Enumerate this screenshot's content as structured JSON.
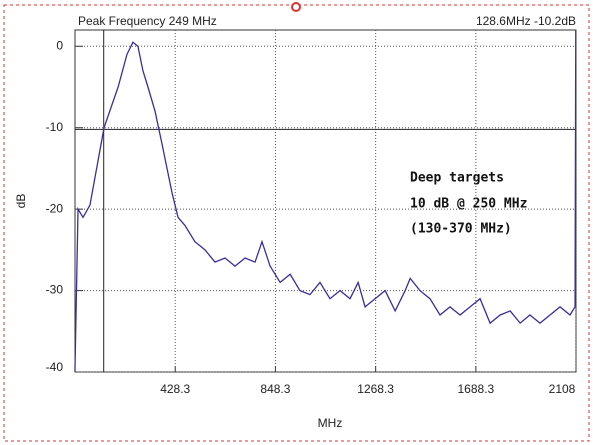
{
  "chart_data": {
    "type": "line",
    "title": "Peak Frequency 249 MHz",
    "cursor": {
      "x": 128.6,
      "y": -10.2,
      "label": "128.6MHz -10.2dB"
    },
    "annotation": [
      "Deep targets",
      "10 dB @ 250 MHz",
      "(130-370 MHz)"
    ],
    "xlabel": "MHz",
    "ylabel": "dB",
    "xlim": [
      8.3,
      2108
    ],
    "ylim": [
      -40,
      2
    ],
    "xticks": [
      428.3,
      848.3,
      1268.3,
      1688.3,
      2108
    ],
    "yticks": [
      0,
      -10,
      -20,
      -30,
      -40
    ],
    "grid": true,
    "series": [
      {
        "color": "#3a2f9a",
        "x": [
          8,
          21,
          42,
          71,
          130,
          189,
          226,
          251,
          272,
          293,
          314,
          344,
          373,
          415,
          440,
          469,
          511,
          553,
          595,
          637,
          679,
          721,
          763,
          792,
          826,
          868,
          910,
          951,
          993,
          1035,
          1077,
          1119,
          1161,
          1195,
          1224,
          1266,
          1308,
          1350,
          1392,
          1413,
          1454,
          1496,
          1538,
          1580,
          1622,
          1664,
          1706,
          1748,
          1790,
          1832,
          1874,
          1915,
          1957,
          1999,
          2041,
          2083,
          2104,
          2107
        ],
        "values": [
          -40,
          -20,
          -21,
          -19.5,
          -10,
          -5,
          -1,
          0.5,
          0,
          -3,
          -5,
          -8,
          -12,
          -18,
          -21,
          -22,
          -24,
          -25,
          -26.5,
          -26,
          -27,
          -26,
          -26.5,
          -24,
          -27,
          -29,
          -28,
          -30,
          -30.5,
          -29,
          -31,
          -30,
          -31,
          -29,
          -32,
          -31,
          -30,
          -32.5,
          -30,
          -28.5,
          -30,
          -31,
          -33,
          -32,
          -33,
          -32,
          -31,
          -34,
          -33,
          -32.5,
          -34,
          -33,
          -34,
          -33,
          -32,
          -33,
          -32,
          2
        ]
      }
    ]
  }
}
